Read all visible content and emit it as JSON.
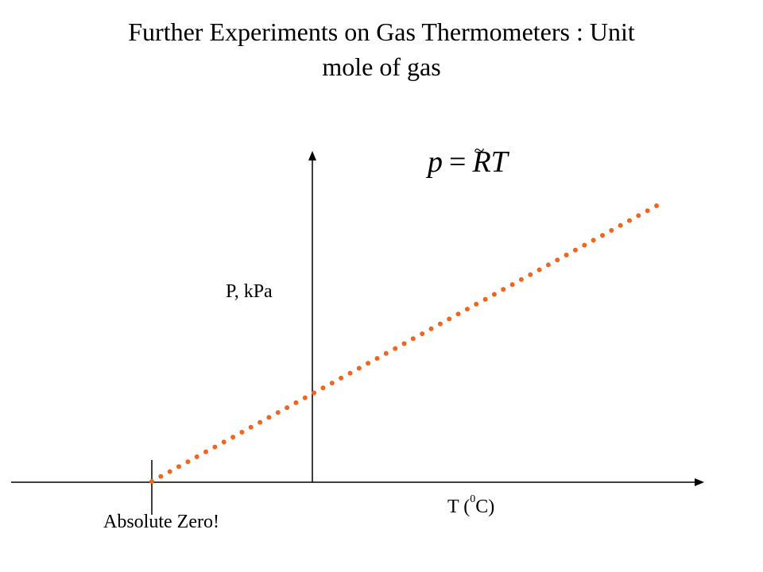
{
  "title": {
    "line1": "Further Experiments on Gas Thermometers : Unit",
    "line2": "mole of gas"
  },
  "equation": {
    "lhs": "p",
    "op": "=",
    "r": "R",
    "tilde": "~",
    "t": "T"
  },
  "axes": {
    "y_label": "P, kPa",
    "x_label_prefix": "T (",
    "x_label_sup": "0",
    "x_label_suffix": "C)"
  },
  "annotation": {
    "absolute_zero": "Absolute Zero!"
  },
  "colors": {
    "line": "#f0661e",
    "axis": "#000000"
  }
}
